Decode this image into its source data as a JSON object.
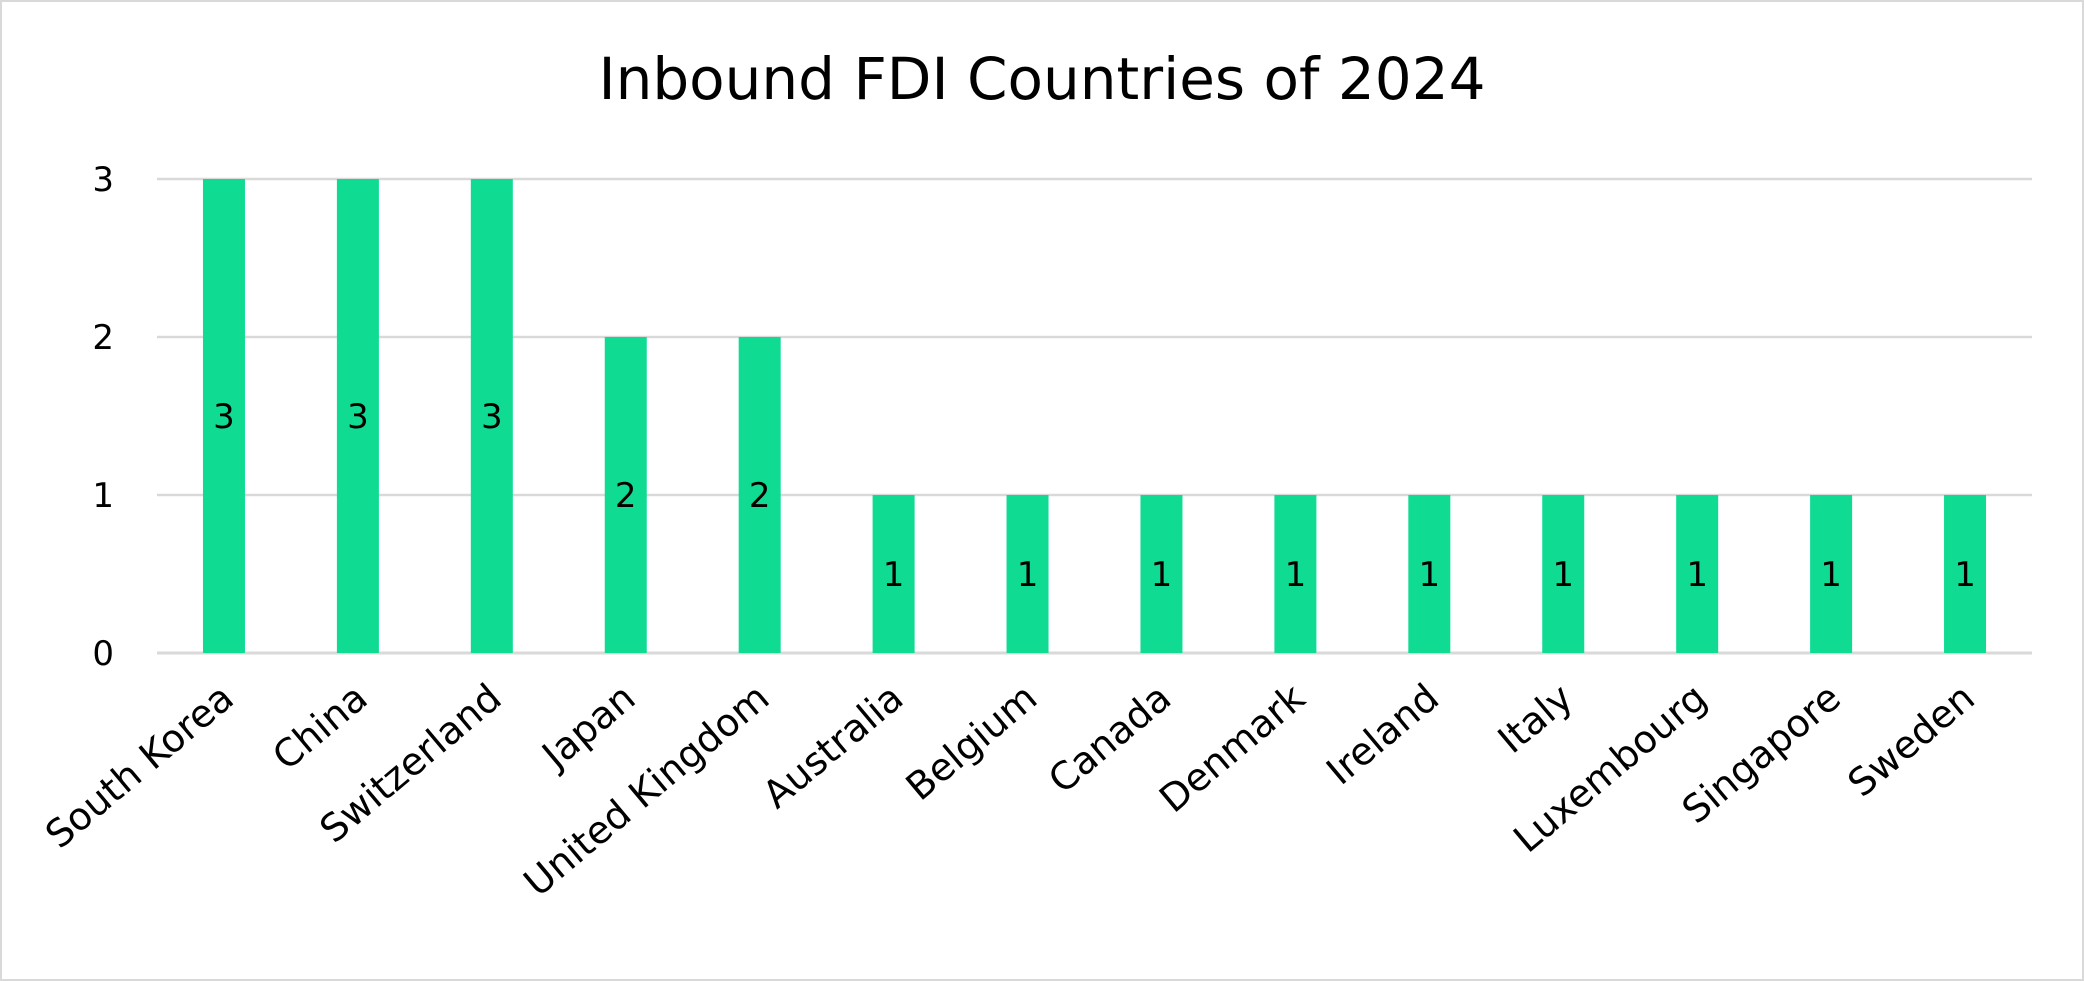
{
  "chart_data": {
    "type": "bar",
    "title": "Inbound FDI Countries of 2024",
    "xlabel": "",
    "ylabel": "",
    "categories": [
      "South Korea",
      "China",
      "Switzerland",
      "Japan",
      "United Kingdom",
      "Australia",
      "Belgium",
      "Canada",
      "Denmark",
      "Ireland",
      "Italy",
      "Luxembourg",
      "Singapore",
      "Sweden"
    ],
    "values": [
      3,
      3,
      3,
      2,
      2,
      1,
      1,
      1,
      1,
      1,
      1,
      1,
      1,
      1
    ],
    "ylim": [
      0,
      3
    ],
    "yticks": [
      0,
      1,
      2,
      3
    ],
    "grid": true,
    "data_labels": true,
    "legend": "none",
    "colors": {
      "bar": "#10db93",
      "grid": "#d9d9d9",
      "text": "#000000",
      "border": "#d9d9d9"
    }
  }
}
